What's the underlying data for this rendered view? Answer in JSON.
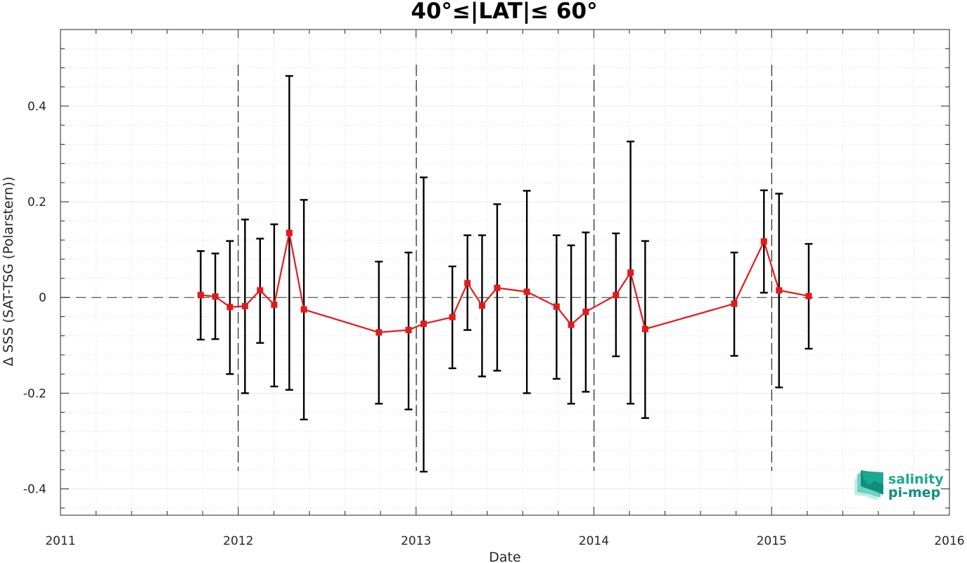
{
  "chart_data": {
    "type": "line",
    "title": "40°≤|LAT|≤ 60°",
    "xlabel": "Date",
    "ylabel": "Δ SSS (SAT-TSG (Polarstern))",
    "xlim": [
      "2011-01-01",
      "2016-01-01"
    ],
    "ylim": [
      -0.455,
      0.56
    ],
    "x_ticks": [
      "2011",
      "2012",
      "2013",
      "2014",
      "2015",
      "2016"
    ],
    "y_ticks": [
      {
        "value": 0.4,
        "label": "0.4"
      },
      {
        "value": 0.2,
        "label": "0.2"
      },
      {
        "value": 0,
        "label": "0"
      },
      {
        "value": -0.2,
        "label": "-0.2"
      },
      {
        "value": -0.4,
        "label": "-0.4"
      }
    ],
    "grid": true,
    "zero_line": 0,
    "year_boundaries": [
      "2012-01-01",
      "2013-01-01",
      "2014-01-01",
      "2015-01-01"
    ],
    "series": [
      {
        "color": "#e31a1c",
        "marker": "square",
        "error_bar_color": "#000000",
        "points": [
          {
            "x": "2011-10-16",
            "y": 0.005,
            "low": -0.088,
            "high": 0.097
          },
          {
            "x": "2011-11-15",
            "y": 0.002,
            "low": -0.087,
            "high": 0.092
          },
          {
            "x": "2011-12-15",
            "y": -0.02,
            "low": -0.16,
            "high": 0.118
          },
          {
            "x": "2012-01-15",
            "y": -0.018,
            "low": -0.2,
            "high": 0.163
          },
          {
            "x": "2012-02-15",
            "y": 0.015,
            "low": -0.095,
            "high": 0.123
          },
          {
            "x": "2012-03-15",
            "y": -0.015,
            "low": -0.186,
            "high": 0.153
          },
          {
            "x": "2012-04-15",
            "y": 0.135,
            "low": -0.193,
            "high": 0.463
          },
          {
            "x": "2012-05-15",
            "y": -0.025,
            "low": -0.255,
            "high": 0.204
          },
          {
            "x": "2012-10-16",
            "y": -0.073,
            "low": -0.222,
            "high": 0.075
          },
          {
            "x": "2012-12-16",
            "y": -0.068,
            "low": -0.234,
            "high": 0.094
          },
          {
            "x": "2013-01-16",
            "y": -0.055,
            "low": -0.364,
            "high": 0.251
          },
          {
            "x": "2013-03-16",
            "y": -0.041,
            "low": -0.148,
            "high": 0.065
          },
          {
            "x": "2013-04-16",
            "y": 0.03,
            "low": -0.068,
            "high": 0.13
          },
          {
            "x": "2013-05-16",
            "y": -0.017,
            "low": -0.165,
            "high": 0.13
          },
          {
            "x": "2013-06-16",
            "y": 0.02,
            "low": -0.153,
            "high": 0.195
          },
          {
            "x": "2013-08-16",
            "y": 0.012,
            "low": -0.2,
            "high": 0.223
          },
          {
            "x": "2013-10-16",
            "y": -0.019,
            "low": -0.17,
            "high": 0.13
          },
          {
            "x": "2013-11-15",
            "y": -0.057,
            "low": -0.222,
            "high": 0.109
          },
          {
            "x": "2013-12-15",
            "y": -0.03,
            "low": -0.197,
            "high": 0.136
          },
          {
            "x": "2014-02-15",
            "y": 0.005,
            "low": -0.123,
            "high": 0.134
          },
          {
            "x": "2014-03-17",
            "y": 0.052,
            "low": -0.222,
            "high": 0.326
          },
          {
            "x": "2014-04-16",
            "y": -0.066,
            "low": -0.252,
            "high": 0.118
          },
          {
            "x": "2014-10-16",
            "y": -0.013,
            "low": -0.122,
            "high": 0.094
          },
          {
            "x": "2014-12-16",
            "y": 0.117,
            "low": 0.01,
            "high": 0.224
          },
          {
            "x": "2015-01-16",
            "y": 0.015,
            "low": -0.188,
            "high": 0.217
          },
          {
            "x": "2015-03-18",
            "y": 0.003,
            "low": -0.107,
            "high": 0.112
          }
        ]
      }
    ]
  },
  "logo": {
    "line1": "salinity",
    "line2": "pi-mep",
    "colors": [
      "#1aa890",
      "#0e8f7e",
      "#6fd1bd",
      "#bfeee2"
    ]
  }
}
